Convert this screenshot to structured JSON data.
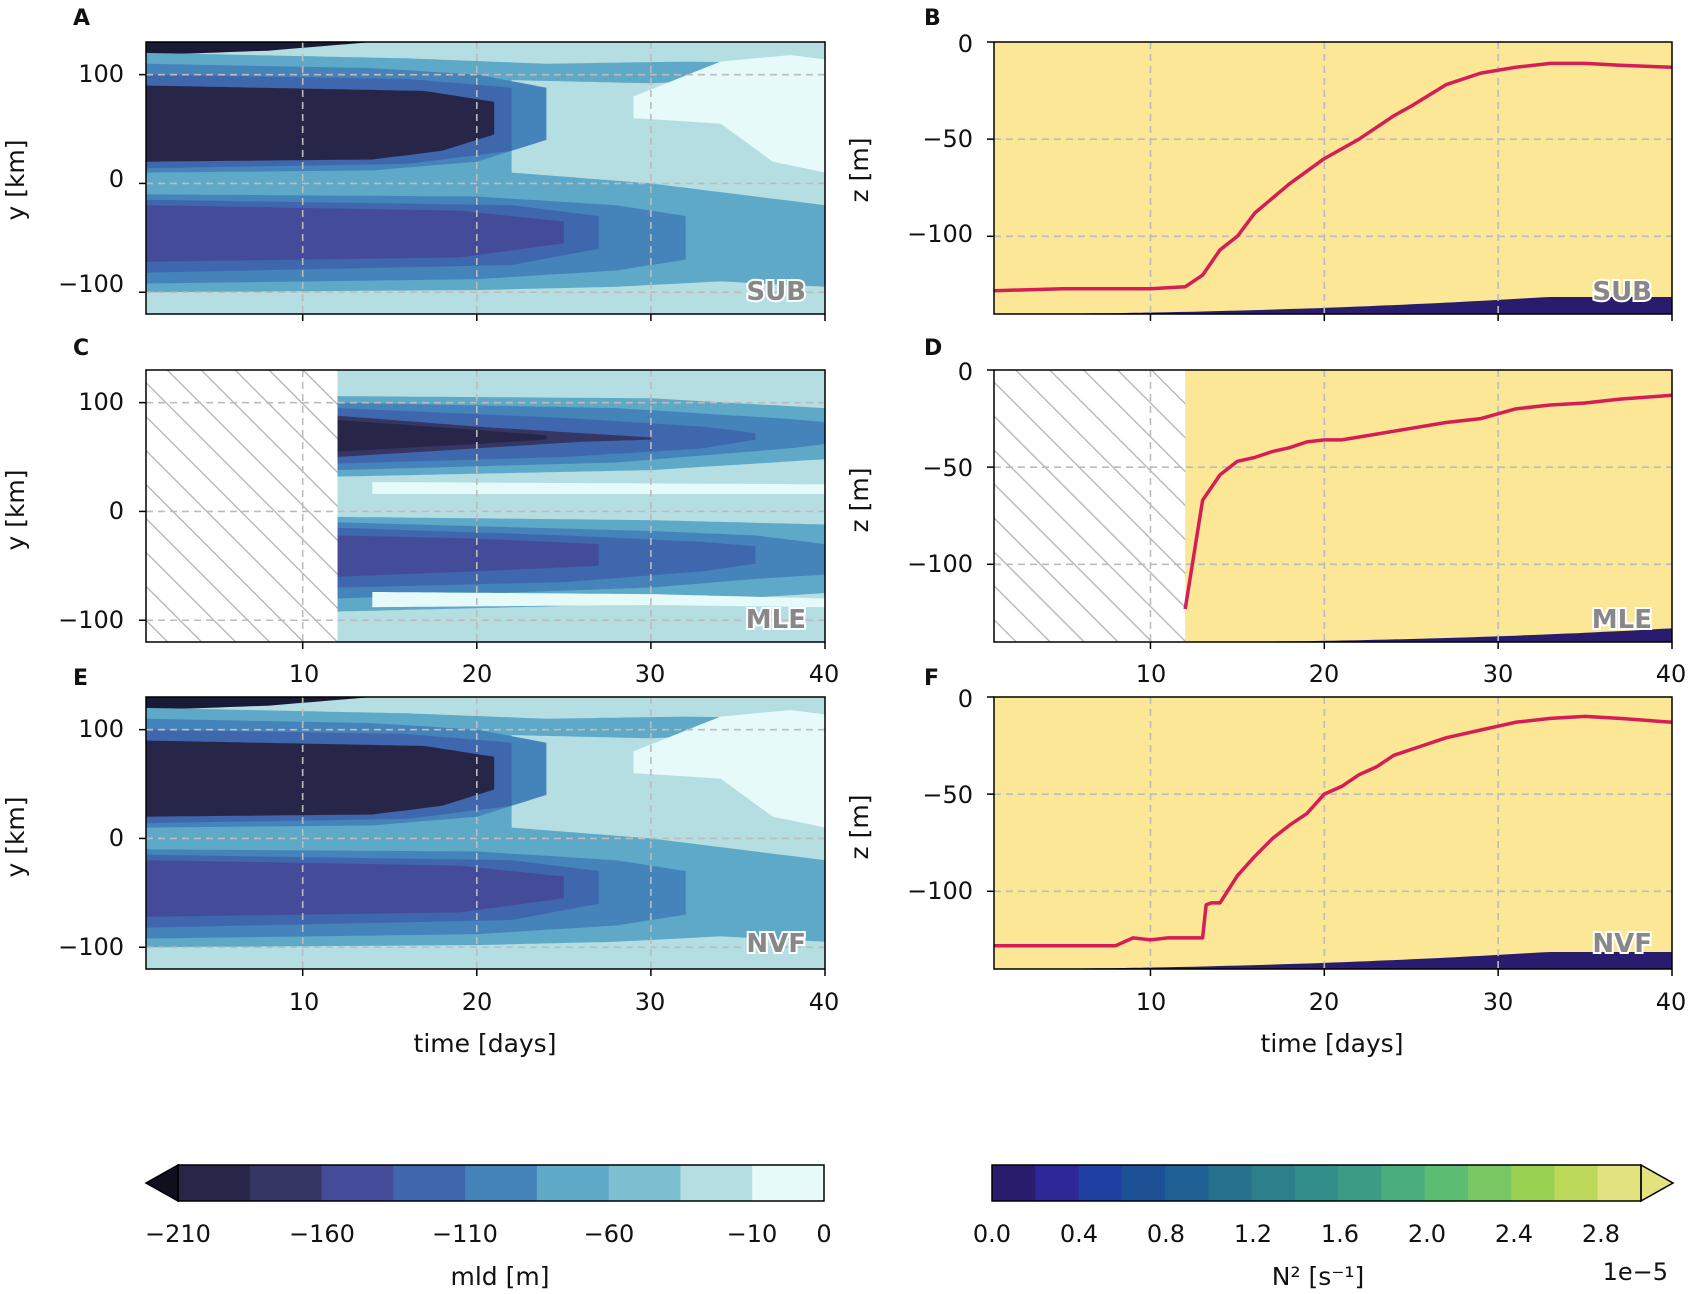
{
  "chart_data": [
    {
      "panel_label": "A",
      "type": "heatmap",
      "field": "mld",
      "run": "SUB",
      "ylabel": "y [km]",
      "xticks": [
        "",
        "",
        "",
        ""
      ],
      "yticks": [
        "100",
        "0",
        "−100"
      ],
      "xlim": [
        1,
        40
      ],
      "ylim": [
        -120,
        130
      ],
      "start_day": 1,
      "legend": "bottom-right"
    },
    {
      "panel_label": "B",
      "type": "heatmap",
      "field": "N2",
      "run": "SUB",
      "ylabel": "z [m]",
      "xticks": [
        "",
        "",
        "",
        ""
      ],
      "yticks": [
        "0",
        "−50",
        "−100"
      ],
      "xlim": [
        1,
        40
      ],
      "ylim": [
        -140,
        0
      ],
      "start_day": 1,
      "legend": "bottom-right",
      "line": {
        "x": [
          1,
          5,
          10,
          12,
          13,
          14,
          15,
          16,
          18,
          20,
          22,
          24,
          25,
          27,
          29,
          31,
          33,
          35,
          37,
          40
        ],
        "y": [
          -128,
          -127,
          -127,
          -126,
          -120,
          -107,
          -100,
          -88,
          -73,
          -60,
          -50,
          -38,
          -33,
          -22,
          -16,
          -13,
          -11,
          -11,
          -12,
          -13
        ]
      }
    },
    {
      "panel_label": "C",
      "type": "heatmap",
      "field": "mld",
      "run": "MLE",
      "ylabel": "y [km]",
      "xticks": [
        "10",
        "20",
        "30",
        "40"
      ],
      "yticks": [
        "100",
        "0",
        "−100"
      ],
      "xlim": [
        1,
        40
      ],
      "ylim": [
        -120,
        130
      ],
      "start_day": 12,
      "legend": "bottom-right"
    },
    {
      "panel_label": "D",
      "type": "heatmap",
      "field": "N2",
      "run": "MLE",
      "ylabel": "z [m]",
      "xticks": [
        "10",
        "20",
        "30",
        "40"
      ],
      "yticks": [
        "0",
        "−50",
        "−100"
      ],
      "xlim": [
        1,
        40
      ],
      "ylim": [
        -140,
        0
      ],
      "start_day": 12,
      "legend": "bottom-right",
      "line": {
        "x": [
          12,
          12.5,
          13,
          14,
          15,
          16,
          17,
          18,
          19,
          20,
          21,
          23,
          25,
          27,
          29,
          31,
          33,
          35,
          37,
          40
        ],
        "y": [
          -123,
          -95,
          -67,
          -54,
          -47,
          -45,
          -42,
          -40,
          -37,
          -36,
          -36,
          -33,
          -30,
          -27,
          -25,
          -20,
          -18,
          -17,
          -15,
          -13
        ]
      }
    },
    {
      "panel_label": "E",
      "type": "heatmap",
      "field": "mld",
      "run": "NVF",
      "ylabel": "y [km]",
      "xlabel": "time [days]",
      "xticks": [
        "10",
        "20",
        "30",
        "40"
      ],
      "yticks": [
        "100",
        "0",
        "−100"
      ],
      "xlim": [
        1,
        40
      ],
      "ylim": [
        -120,
        130
      ],
      "start_day": 1,
      "legend": "bottom-right"
    },
    {
      "panel_label": "F",
      "type": "heatmap",
      "field": "N2",
      "run": "NVF",
      "ylabel": "z [m]",
      "xlabel": "time [days]",
      "xticks": [
        "10",
        "20",
        "30",
        "40"
      ],
      "yticks": [
        "0",
        "−50",
        "−100"
      ],
      "xlim": [
        1,
        40
      ],
      "ylim": [
        -140,
        0
      ],
      "start_day": 1,
      "legend": "bottom-right",
      "line": {
        "x": [
          1,
          5,
          8,
          9,
          10,
          11,
          12,
          13,
          13.2,
          13.5,
          14,
          15,
          16,
          17,
          18,
          19,
          20,
          21,
          22,
          23,
          24,
          25,
          27,
          29,
          31,
          33,
          35,
          37,
          40
        ],
        "y": [
          -128,
          -128,
          -128,
          -124,
          -125,
          -124,
          -124,
          -124,
          -107,
          -106,
          -106,
          -92,
          -82,
          -73,
          -66,
          -60,
          -50,
          -46,
          -40,
          -36,
          -30,
          -27,
          -21,
          -17,
          -13,
          -11,
          -10,
          -11,
          -13
        ]
      }
    }
  ],
  "colorbars": {
    "mld": {
      "label": "mld [m]",
      "ticks": [
        "−210",
        "−160",
        "−110",
        "−60",
        "−10",
        "0"
      ],
      "colors": [
        "#1b1a36",
        "#272649",
        "#363665",
        "#444c99",
        "#3f67ad",
        "#4484bb",
        "#5ea8c8",
        "#7dc0d1",
        "#b4dee2",
        "#e6faf9"
      ],
      "extend": "min"
    },
    "N2": {
      "label": "N² [s⁻¹]",
      "ticks": [
        "0.0",
        "0.4",
        "0.8",
        "1.2",
        "1.6",
        "2.0",
        "2.4",
        "2.8"
      ],
      "offset": "1e−5",
      "colors": [
        "#2a1c6c",
        "#2e2797",
        "#1f3fa3",
        "#1d5196",
        "#1f6094",
        "#26708e",
        "#2c7f8b",
        "#318e88",
        "#3b9c85",
        "#4aad7c",
        "#5cbc72",
        "#78c864",
        "#99d253",
        "#bdd95a",
        "#e2e37e",
        "#fbe796"
      ],
      "extend": "max"
    }
  },
  "colors": {
    "line": "#d41e55",
    "grid": "#bcbcbc",
    "hatch": "#b0b0b0"
  }
}
